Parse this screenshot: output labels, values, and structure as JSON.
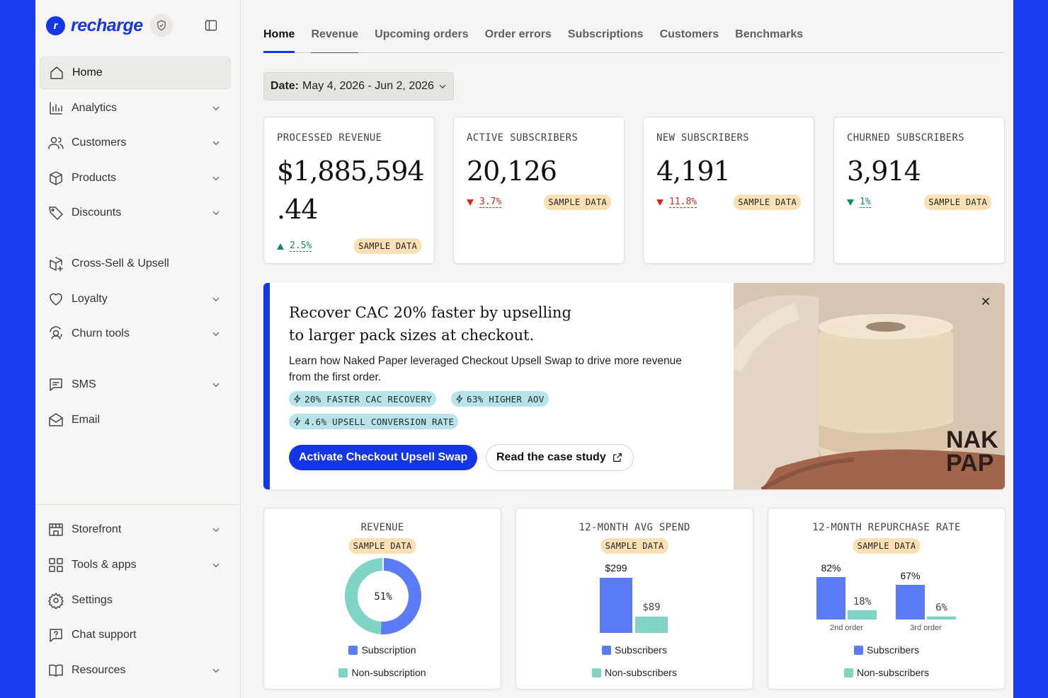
{
  "brand": {
    "name": "recharge"
  },
  "sidebar": {
    "items": [
      {
        "label": "Home",
        "icon": "home-icon",
        "active": true,
        "chevron": false
      },
      {
        "label": "Analytics",
        "icon": "chart-icon",
        "chevron": true
      },
      {
        "label": "Customers",
        "icon": "users-icon",
        "chevron": true
      },
      {
        "label": "Products",
        "icon": "box-icon",
        "chevron": true
      },
      {
        "label": "Discounts",
        "icon": "tag-icon",
        "chevron": true
      },
      {
        "label": "Cross-Sell & Upsell",
        "icon": "box-plus-icon",
        "chevron": false
      },
      {
        "label": "Loyalty",
        "icon": "heart-icon",
        "chevron": true
      },
      {
        "label": "Churn tools",
        "icon": "churn-icon",
        "chevron": true
      },
      {
        "label": "SMS",
        "icon": "message-icon",
        "chevron": true
      },
      {
        "label": "Email",
        "icon": "mail-icon",
        "chevron": false
      },
      {
        "label": "Storefront",
        "icon": "storefront-icon",
        "chevron": true
      },
      {
        "label": "Tools & apps",
        "icon": "grid-icon",
        "chevron": true
      },
      {
        "label": "Settings",
        "icon": "gear-icon",
        "chevron": false
      },
      {
        "label": "Chat support",
        "icon": "chat-question-icon",
        "chevron": false
      },
      {
        "label": "Resources",
        "icon": "book-icon",
        "chevron": true
      }
    ]
  },
  "tabs": [
    "Home",
    "Revenue",
    "Upcoming orders",
    "Order errors",
    "Subscriptions",
    "Customers",
    "Benchmarks"
  ],
  "date_filter": {
    "label": "Date:",
    "value": "May 4, 2026 - Jun 2, 2026"
  },
  "kpis": [
    {
      "title": "PROCESSED REVENUE",
      "value_line1": "$1,885,594",
      "value_line2": ".44",
      "delta": "2.5%",
      "direction": "up",
      "badge": "SAMPLE DATA"
    },
    {
      "title": "ACTIVE SUBSCRIBERS",
      "value_line1": "20,126",
      "delta": "3.7%",
      "direction": "down",
      "badge": "SAMPLE DATA"
    },
    {
      "title": "NEW SUBSCRIBERS",
      "value_line1": "4,191",
      "delta": "11.8%",
      "direction": "down",
      "badge": "SAMPLE DATA"
    },
    {
      "title": "CHURNED SUBSCRIBERS",
      "value_line1": "3,914",
      "delta": "1%",
      "direction": "down-good",
      "badge": "SAMPLE DATA"
    }
  ],
  "promo": {
    "title": "Recover CAC 20% faster by upselling to larger pack sizes at checkout.",
    "body": "Learn how Naked Paper leveraged Checkout Upsell Swap to drive more revenue from the first order.",
    "chips": [
      "20% FASTER CAC RECOVERY",
      "63% HIGHER AOV",
      "4.6% UPSELL CONVERSION RATE"
    ],
    "primary_button": "Activate Checkout Upsell Swap",
    "secondary_button": "Read the case study",
    "image_brand_text": [
      "NAK",
      "PAP"
    ]
  },
  "colors": {
    "accent": "#1436e6",
    "primary_series": "#5b7bf7",
    "secondary_series": "#7fd4c5",
    "badge_bg": "#fbe0b6",
    "chip_bg": "#b8e3ea"
  },
  "chart_data": [
    {
      "type": "pie",
      "title": "REVENUE",
      "badge": "SAMPLE DATA",
      "center_label": "51%",
      "categories": [
        "Subscription",
        "Non-subscription"
      ],
      "values": [
        51,
        49
      ]
    },
    {
      "type": "bar",
      "title": "12-MONTH AVG SPEND",
      "badge": "SAMPLE DATA",
      "categories": [
        ""
      ],
      "series": [
        {
          "name": "Subscribers",
          "values": [
            299
          ],
          "labels": [
            "$299"
          ]
        },
        {
          "name": "Non-subscribers",
          "values": [
            89
          ],
          "labels": [
            "$89"
          ]
        }
      ]
    },
    {
      "type": "bar",
      "title": "12-MONTH REPURCHASE RATE",
      "badge": "SAMPLE DATA",
      "categories": [
        "2nd order",
        "3rd order"
      ],
      "series": [
        {
          "name": "Subscribers",
          "values": [
            82,
            67
          ],
          "labels": [
            "82%",
            "67%"
          ]
        },
        {
          "name": "Non-subscribers",
          "values": [
            18,
            6
          ],
          "labels": [
            "18%",
            "6%"
          ]
        }
      ]
    }
  ]
}
